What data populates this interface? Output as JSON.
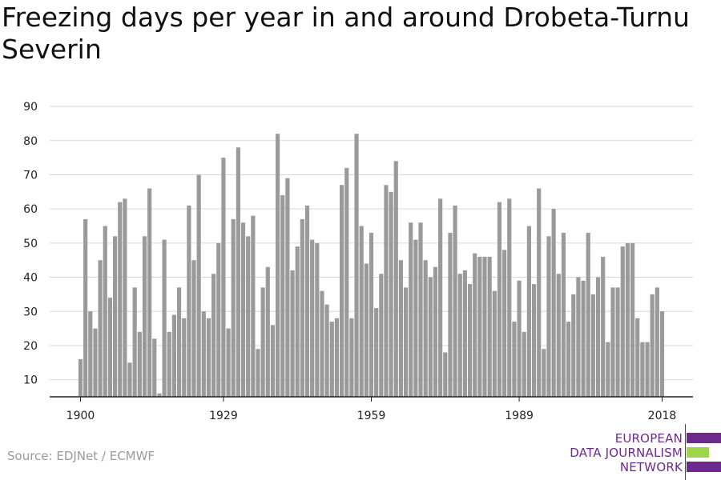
{
  "title": "Freezing days per year in and around Drobeta-Turnu Severin",
  "source": "Source: EDJNet / ECMWF",
  "logo": {
    "lines": [
      "EUROPEAN",
      "DATA JOURNALISM",
      "NETWORK"
    ],
    "colors": {
      "purple": "#6c2a8c",
      "green": "#9dd44a"
    }
  },
  "chart_data": {
    "type": "bar",
    "title": "Freezing days per year in and around Drobeta-Turnu Severin",
    "xlabel": "",
    "ylabel": "",
    "x_start": 1900,
    "x_end": 2018,
    "x_ticks": [
      1900,
      1929,
      1959,
      1989,
      2018
    ],
    "y_ticks": [
      10,
      20,
      30,
      40,
      50,
      60,
      70,
      80,
      90
    ],
    "ylim": [
      5,
      90
    ],
    "grid": true,
    "bar_color": "#9a9a9a",
    "values": [
      16,
      57,
      30,
      25,
      45,
      55,
      34,
      52,
      62,
      63,
      15,
      37,
      24,
      52,
      66,
      22,
      6,
      51,
      24,
      29,
      37,
      28,
      61,
      45,
      70,
      30,
      28,
      41,
      50,
      75,
      25,
      57,
      78,
      56,
      52,
      58,
      19,
      37,
      43,
      26,
      82,
      64,
      69,
      42,
      49,
      57,
      61,
      51,
      50,
      36,
      32,
      27,
      28,
      67,
      72,
      28,
      82,
      55,
      44,
      53,
      31,
      41,
      67,
      65,
      74,
      45,
      37,
      56,
      51,
      56,
      45,
      40,
      43,
      63,
      18,
      53,
      61,
      41,
      42,
      38,
      47,
      46,
      46,
      46,
      36,
      62,
      48,
      63,
      27,
      39,
      24,
      55,
      38,
      66,
      19,
      52,
      60,
      41,
      53,
      27,
      35,
      40,
      39,
      53,
      35,
      40,
      46,
      21,
      37,
      37,
      49,
      50,
      50,
      28,
      21,
      21,
      35,
      37,
      30
    ]
  }
}
